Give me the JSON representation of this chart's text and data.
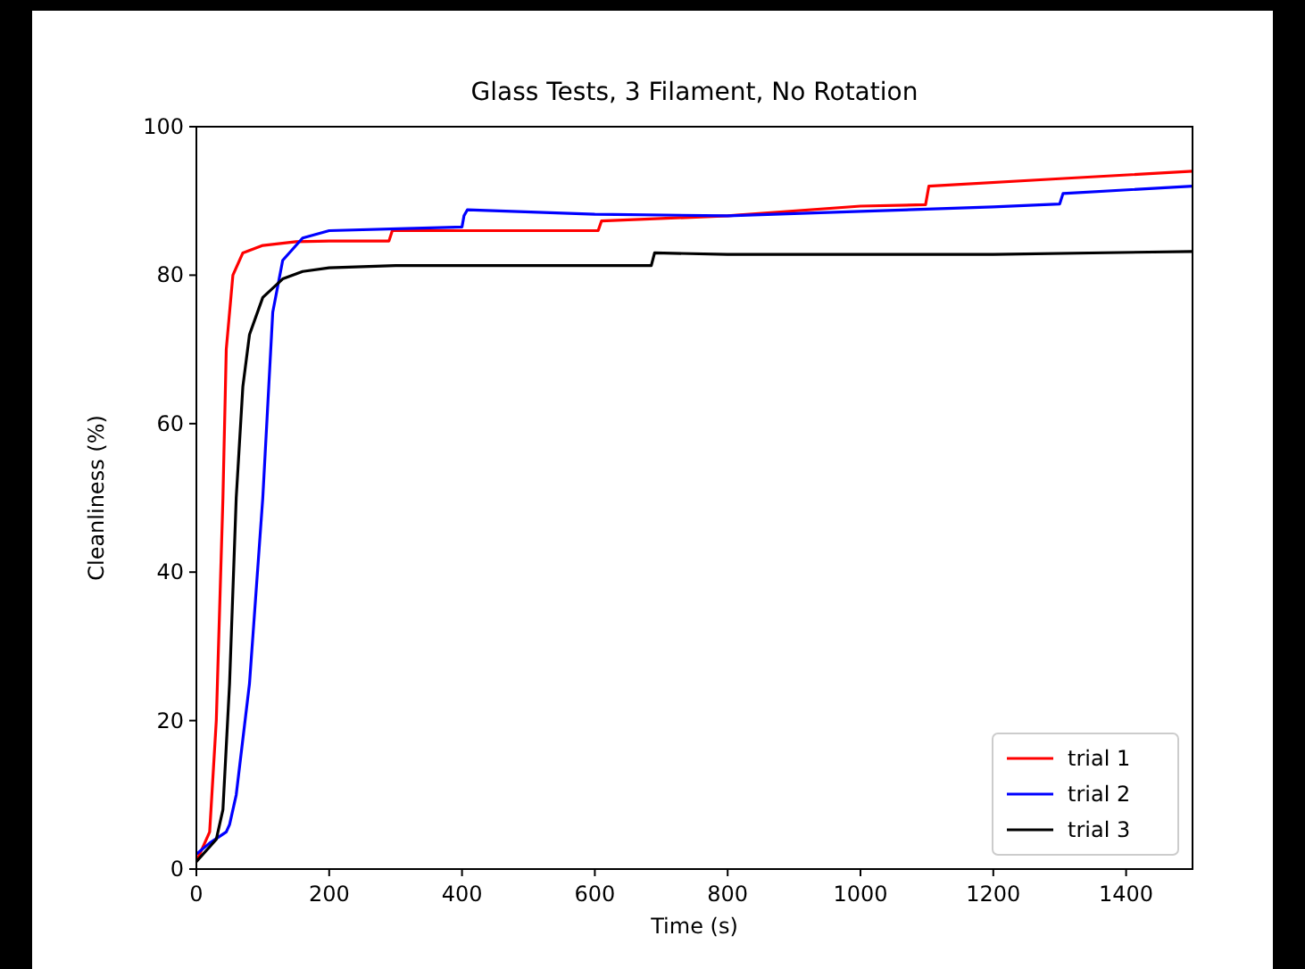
{
  "chart_data": {
    "type": "line",
    "title": "Glass Tests, 3 Filament, No Rotation",
    "xlabel": "Time (s)",
    "ylabel": "Cleanliness (%)",
    "xlim": [
      0,
      1500
    ],
    "ylim": [
      0,
      100
    ],
    "xticks": [
      0,
      200,
      400,
      600,
      800,
      1000,
      1200,
      1400
    ],
    "yticks": [
      0,
      20,
      40,
      60,
      80,
      100
    ],
    "grid": false,
    "legend": "bottom right",
    "line_style": "solid",
    "series": [
      {
        "name": "trial 1",
        "color": "#ff0000",
        "x": [
          0,
          10,
          20,
          30,
          40,
          45,
          55,
          70,
          100,
          150,
          200,
          290,
          295,
          400,
          605,
          610,
          800,
          1000,
          1098,
          1103,
          1300,
          1500
        ],
        "values": [
          1,
          3,
          5,
          20,
          50,
          70,
          80,
          83,
          84,
          84.5,
          84.6,
          84.6,
          86,
          86,
          86,
          87.3,
          88,
          89.3,
          89.5,
          92,
          93,
          94
        ]
      },
      {
        "name": "trial 2",
        "color": "#0000ff",
        "x": [
          0,
          20,
          45,
          50,
          60,
          80,
          100,
          115,
          130,
          160,
          200,
          400,
          403,
          408,
          600,
          800,
          1000,
          1200,
          1300,
          1305,
          1500
        ],
        "values": [
          2,
          3.5,
          5,
          6,
          10,
          25,
          50,
          75,
          82,
          85,
          86,
          86.5,
          88,
          88.8,
          88.2,
          88,
          88.6,
          89.2,
          89.6,
          91,
          92
        ]
      },
      {
        "name": "trial 3",
        "color": "#000000",
        "x": [
          0,
          30,
          40,
          50,
          60,
          70,
          80,
          100,
          130,
          160,
          200,
          300,
          500,
          685,
          690,
          800,
          1000,
          1200,
          1500
        ],
        "values": [
          1,
          4,
          8,
          25,
          50,
          65,
          72,
          77,
          79.5,
          80.5,
          81,
          81.3,
          81.3,
          81.3,
          83,
          82.8,
          82.8,
          82.8,
          83.2
        ]
      }
    ]
  }
}
